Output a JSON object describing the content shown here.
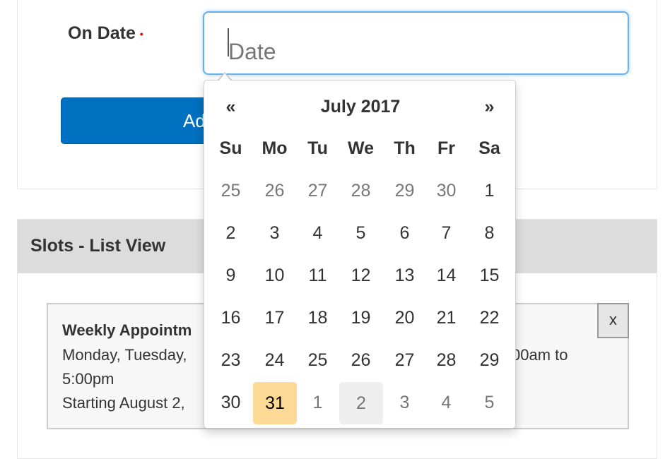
{
  "form": {
    "on_date_label": "On Date",
    "required_marker": "•",
    "date_placeholder": "Date",
    "add_button_label": "Add"
  },
  "slots": {
    "title": "Slots - List View",
    "card": {
      "title": "Weekly Appointm",
      "line1_left": "Monday, Tuesday,",
      "line1_right": "00am to",
      "line2": "5:00pm",
      "line3": "Starting August 2,",
      "close_label": "x"
    }
  },
  "datepicker": {
    "prev": "«",
    "next": "»",
    "month_title": "July 2017",
    "weekdays": [
      "Su",
      "Mo",
      "Tu",
      "We",
      "Th",
      "Fr",
      "Sa"
    ],
    "weeks": [
      [
        "25",
        "26",
        "27",
        "28",
        "29",
        "30",
        "1"
      ],
      [
        "2",
        "3",
        "4",
        "5",
        "6",
        "7",
        "8"
      ],
      [
        "9",
        "10",
        "11",
        "12",
        "13",
        "14",
        "15"
      ],
      [
        "16",
        "17",
        "18",
        "19",
        "20",
        "21",
        "22"
      ],
      [
        "23",
        "24",
        "25",
        "26",
        "27",
        "28",
        "29"
      ],
      [
        "30",
        "31",
        "1",
        "2",
        "3",
        "4",
        "5"
      ]
    ],
    "today": "31",
    "hovered": "2 (August)",
    "colors": {
      "today": "#fcd994",
      "hover": "#eeeeee",
      "other_month": "#777777"
    }
  }
}
